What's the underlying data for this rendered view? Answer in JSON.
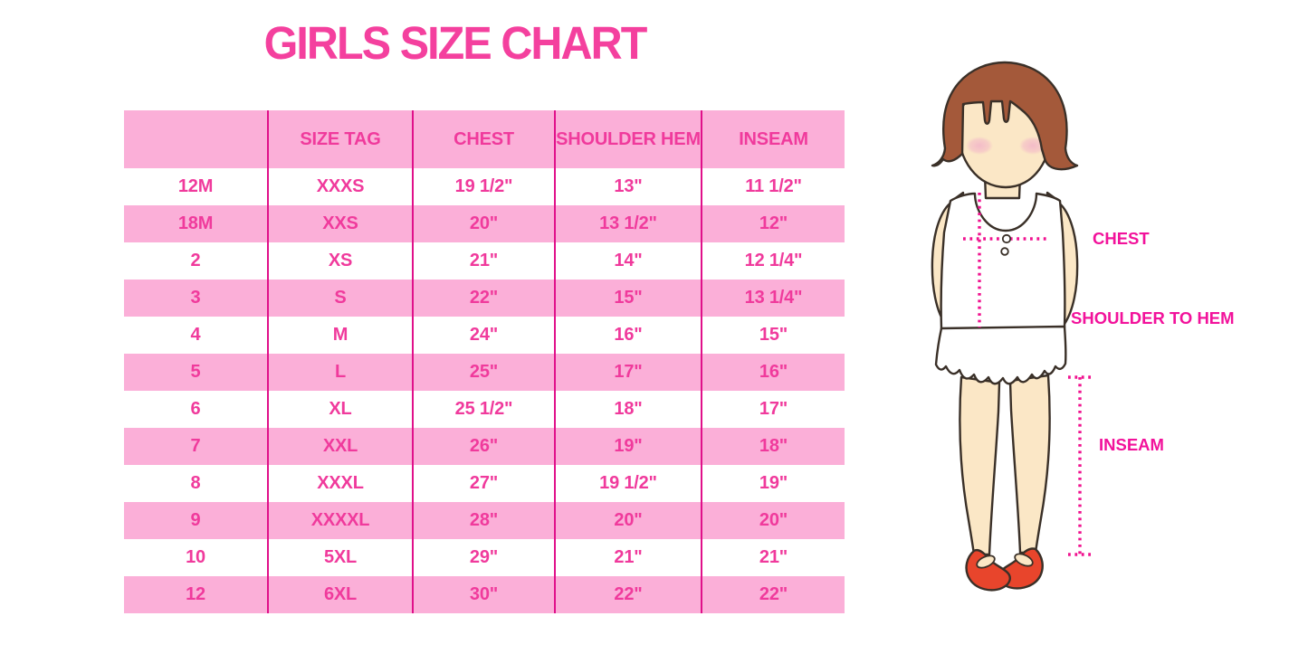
{
  "chart_data": {
    "type": "table",
    "title": "GIRLS SIZE CHART",
    "columns": [
      "",
      "SIZE TAG",
      "CHEST",
      "SHOULDER HEM",
      "INSEAM"
    ],
    "rows": [
      [
        "12M",
        "XXXS",
        "19 1/2\"",
        "13\"",
        "11 1/2\""
      ],
      [
        "18M",
        "XXS",
        "20\"",
        "13 1/2\"",
        "12\""
      ],
      [
        "2",
        "XS",
        "21\"",
        "14\"",
        "12 1/4\""
      ],
      [
        "3",
        "S",
        "22\"",
        "15\"",
        "13 1/4\""
      ],
      [
        "4",
        "M",
        "24\"",
        "16\"",
        "15\""
      ],
      [
        "5",
        "L",
        "25\"",
        "17\"",
        "16\""
      ],
      [
        "6",
        "XL",
        "25 1/2\"",
        "18\"",
        "17\""
      ],
      [
        "7",
        "XXL",
        "26\"",
        "19\"",
        "18\""
      ],
      [
        "8",
        "XXXL",
        "27\"",
        "19 1/2\"",
        "19\""
      ],
      [
        "9",
        "XXXXL",
        "28\"",
        "20\"",
        "20\""
      ],
      [
        "10",
        "5XL",
        "29\"",
        "21\"",
        "21\""
      ],
      [
        "12",
        "6XL",
        "30\"",
        "22\"",
        "22\""
      ]
    ]
  },
  "figure_labels": {
    "chest": "CHEST",
    "shoulder_to_hem": "SHOULDER TO HEM",
    "inseam": "INSEAM"
  },
  "colors": {
    "title_pink": "#F4409E",
    "text_pink": "#F03A9C",
    "row_pink": "#FBAFD8",
    "separator_magenta": "#E0108A",
    "label_pink": "#F2129B",
    "dotted_magenta": "#F0128F",
    "hair_brown": "#A4593A",
    "skin": "#FBE7C6",
    "blush": "#F3B9C8",
    "shoe_red": "#E8452C",
    "garment_white": "#FFFFFF",
    "outline_dark": "#3A3028"
  }
}
